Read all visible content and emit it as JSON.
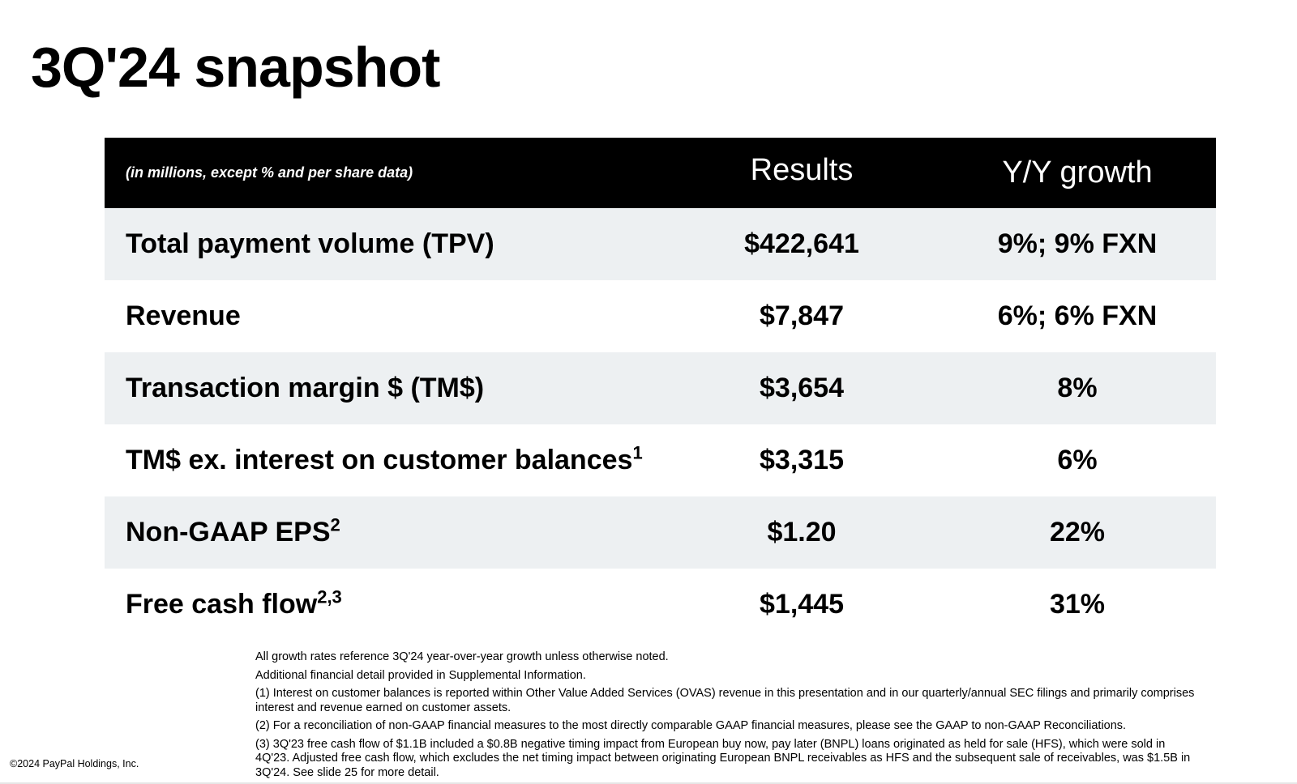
{
  "title": "3Q'24 snapshot",
  "table": {
    "header": {
      "label": "(in millions, except % and per share data)",
      "results": "Results",
      "growth": "Y/Y growth"
    },
    "rows": [
      {
        "label": "Total payment volume (TPV)",
        "sup": "",
        "result": "$422,641",
        "growth": "9%; 9% FXN"
      },
      {
        "label": "Revenue",
        "sup": "",
        "result": "$7,847",
        "growth": "6%; 6% FXN"
      },
      {
        "label": "Transaction margin $ (TM$)",
        "sup": "",
        "result": "$3,654",
        "growth": "8%"
      },
      {
        "label": "TM$ ex. interest on customer balances",
        "sup": "1",
        "result": "$3,315",
        "growth": "6%"
      },
      {
        "label": "Non-GAAP EPS",
        "sup": "2",
        "result": "$1.20",
        "growth": "22%"
      },
      {
        "label": "Free cash flow",
        "sup": "2,3",
        "result": "$1,445",
        "growth": "31%"
      }
    ]
  },
  "notes": [
    "All growth rates reference 3Q'24 year-over-year growth unless otherwise noted.",
    "Additional financial detail provided in Supplemental Information.",
    "(1) Interest on customer balances is reported within Other Value Added Services (OVAS) revenue in this presentation and in our quarterly/annual SEC filings and primarily comprises interest and revenue earned on customer assets.",
    "(2) For a reconciliation of non-GAAP financial measures to the most directly comparable GAAP financial measures, please see the GAAP to non-GAAP Reconciliations.",
    "(3) 3Q'23 free cash flow of $1.1B included a $0.8B negative timing impact from European buy now, pay later (BNPL) loans originated as held for sale (HFS), which were sold in 4Q'23. Adjusted free cash flow, which excludes the net timing impact between originating European BNPL receivables as HFS and the subsequent sale of receivables, was $1.5B in 3Q'24. See slide 25 for more detail."
  ],
  "copyright": "©2024 PayPal Holdings, Inc."
}
